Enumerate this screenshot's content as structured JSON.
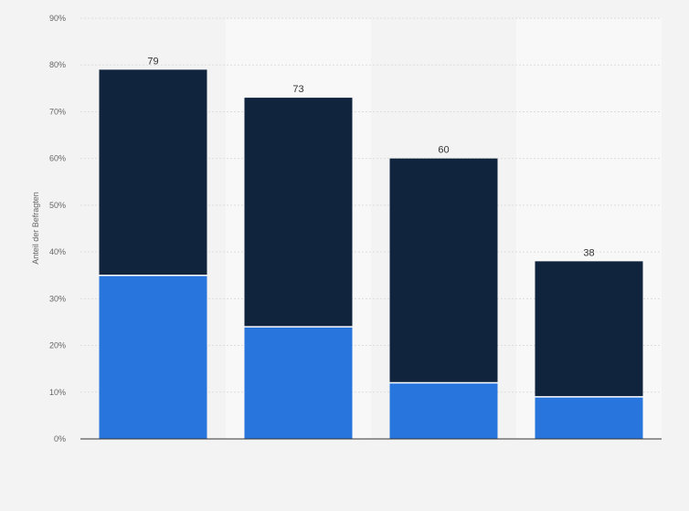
{
  "chart_data": {
    "type": "bar",
    "stacked": true,
    "title": "",
    "xlabel": "",
    "ylabel": "Anteil der Befragten",
    "categories": [
      "",
      "",
      "",
      ""
    ],
    "series": [
      {
        "color": "#2876dd",
        "values": [
          35,
          24,
          12,
          9
        ]
      },
      {
        "color": "#10253d",
        "values": [
          44,
          49,
          48,
          29
        ]
      }
    ],
    "totals": [
      "79",
      "73",
      "60",
      "38"
    ],
    "ylim": [
      0,
      90
    ],
    "yticks": [
      "0%",
      "10%",
      "20%",
      "30%",
      "40%",
      "50%",
      "60%",
      "70%",
      "80%",
      "90%"
    ],
    "grid": true,
    "legend": "none"
  }
}
